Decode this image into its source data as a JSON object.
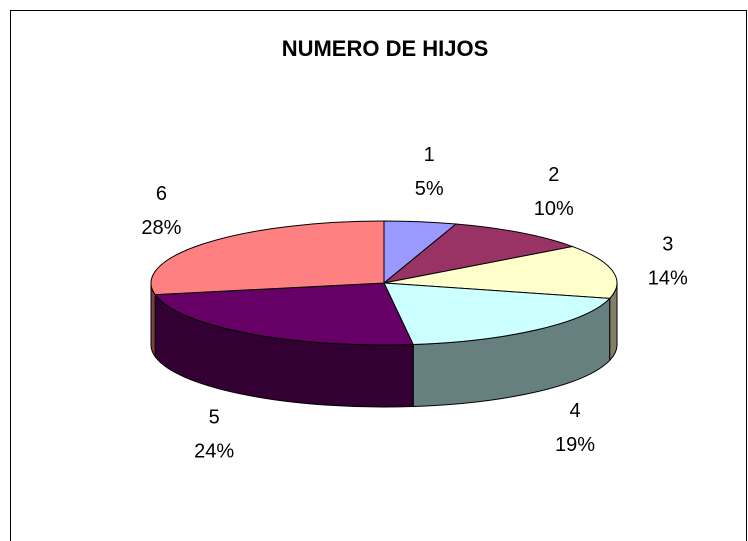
{
  "chart_data": {
    "type": "pie",
    "title": "NUMERO DE HIJOS",
    "categories": [
      "1",
      "2",
      "3",
      "4",
      "5",
      "6"
    ],
    "values": [
      5,
      10,
      14,
      19,
      24,
      28
    ],
    "value_labels": [
      "5%",
      "10%",
      "14%",
      "19%",
      "24%",
      "28%"
    ],
    "colors": [
      "#9999ff",
      "#993366",
      "#ffffcc",
      "#ccffff",
      "#660066",
      "#ff8080"
    ]
  }
}
